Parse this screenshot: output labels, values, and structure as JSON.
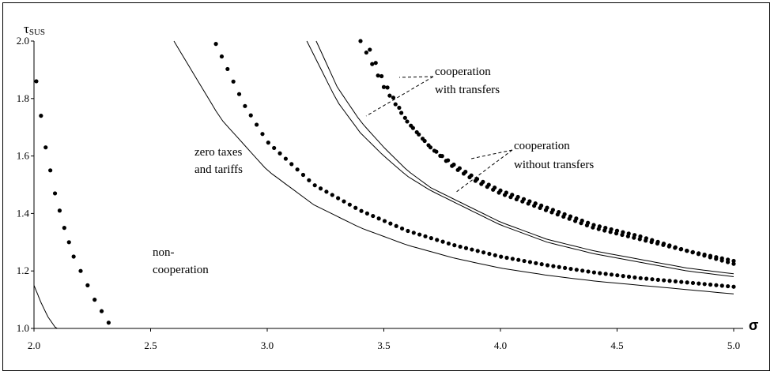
{
  "chart_data": {
    "type": "line",
    "title": "",
    "xlabel": "σ",
    "ylabel_main": "τ",
    "ylabel_sub": "SUS",
    "xlim": [
      2.0,
      5.0
    ],
    "ylim": [
      1.0,
      2.0
    ],
    "xticks": [
      "2.0",
      "2.5",
      "3.0",
      "3.5",
      "4.0",
      "4.5",
      "5.0"
    ],
    "yticks": [
      "1.0",
      "1.2",
      "1.4",
      "1.6",
      "1.8",
      "2.0"
    ],
    "grid": false,
    "legend": "none",
    "series": [
      {
        "style": "solid",
        "x": [
          2.0,
          2.03,
          2.06,
          2.09,
          2.1
        ],
        "y": [
          1.15,
          1.09,
          1.04,
          1.005,
          1.0
        ]
      },
      {
        "style": "dotted",
        "x": [
          2.01,
          2.03,
          2.05,
          2.07,
          2.09,
          2.11,
          2.13,
          2.15,
          2.17,
          2.2,
          2.23,
          2.26,
          2.29,
          2.32
        ],
        "y": [
          1.86,
          1.74,
          1.63,
          1.55,
          1.47,
          1.41,
          1.35,
          1.3,
          1.25,
          1.2,
          1.15,
          1.1,
          1.06,
          1.02
        ]
      },
      {
        "style": "solid",
        "x": [
          2.6,
          2.8,
          3.0,
          3.2,
          3.4,
          3.6,
          3.8,
          4.0,
          4.2,
          4.4,
          4.6,
          4.8,
          5.0
        ],
        "y": [
          2.0,
          1.73,
          1.55,
          1.43,
          1.35,
          1.29,
          1.245,
          1.21,
          1.185,
          1.165,
          1.15,
          1.135,
          1.12
        ]
      },
      {
        "style": "dotted",
        "x": [
          2.78,
          2.9,
          3.0,
          3.2,
          3.4,
          3.6,
          3.8,
          4.0,
          4.2,
          4.4,
          4.6,
          4.8,
          5.0
        ],
        "y": [
          1.99,
          1.78,
          1.65,
          1.5,
          1.41,
          1.34,
          1.29,
          1.25,
          1.22,
          1.195,
          1.175,
          1.16,
          1.145
        ]
      },
      {
        "name": "cooperation without transfers",
        "style": "solid",
        "x": [
          3.17,
          3.3,
          3.4,
          3.5,
          3.6,
          3.7,
          3.8,
          4.0,
          4.2,
          4.4,
          4.6,
          4.8,
          5.0
        ],
        "y": [
          2.0,
          1.79,
          1.68,
          1.6,
          1.53,
          1.48,
          1.44,
          1.36,
          1.3,
          1.26,
          1.23,
          1.2,
          1.18
        ]
      },
      {
        "name": "cooperation with transfers",
        "style": "solid",
        "x": [
          3.21,
          3.3,
          3.4,
          3.5,
          3.6,
          3.7,
          3.8,
          4.0,
          4.2,
          4.4,
          4.6,
          4.8,
          5.0
        ],
        "y": [
          2.0,
          1.84,
          1.72,
          1.63,
          1.55,
          1.49,
          1.45,
          1.37,
          1.31,
          1.27,
          1.24,
          1.21,
          1.19
        ]
      },
      {
        "name": "cooperation with transfers",
        "style": "dotted",
        "x": [
          3.4,
          3.5,
          3.6,
          3.7,
          3.8,
          3.9,
          4.0,
          4.2,
          4.4,
          4.6,
          4.8,
          5.0
        ],
        "y": [
          2.0,
          1.84,
          1.72,
          1.63,
          1.57,
          1.52,
          1.48,
          1.42,
          1.36,
          1.32,
          1.27,
          1.235
        ]
      },
      {
        "name": "cooperation without transfers",
        "style": "dotted",
        "x": [
          3.44,
          3.5,
          3.6,
          3.7,
          3.8,
          3.9,
          4.0,
          4.2,
          4.4,
          4.6,
          4.8,
          5.0
        ],
        "y": [
          1.97,
          1.86,
          1.72,
          1.63,
          1.56,
          1.51,
          1.47,
          1.41,
          1.35,
          1.31,
          1.27,
          1.225
        ]
      }
    ],
    "annotations": {
      "noncoop": [
        "non-",
        "cooperation"
      ],
      "zero": [
        "zero taxes",
        "and tariffs"
      ],
      "with": [
        "cooperation",
        "with transfers"
      ],
      "without": [
        "cooperation",
        "without transfers"
      ]
    }
  }
}
